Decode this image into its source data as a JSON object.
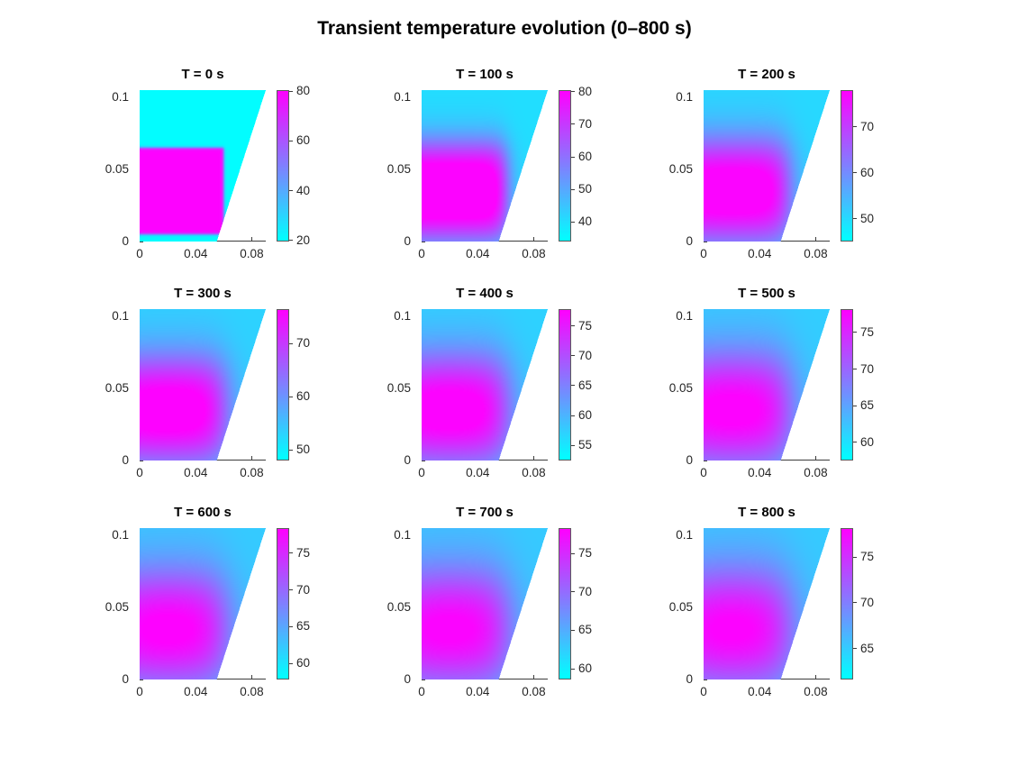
{
  "figure": {
    "title": "Transient temperature evolution (0–800 s)"
  },
  "colormap": {
    "name": "cool",
    "low": "#00ffff",
    "high": "#ff00ff"
  },
  "axes": {
    "x_range": [
      0,
      0.09
    ],
    "y_range": [
      0,
      0.105
    ],
    "x_ticks": {
      "values": [
        0,
        0.04,
        0.08
      ],
      "labels": [
        "0",
        "0.04",
        "0.08"
      ]
    },
    "y_ticks": {
      "values": [
        0,
        0.05,
        0.1
      ],
      "labels": [
        "0",
        "0.05",
        "0.1"
      ]
    }
  },
  "chart_data": {
    "type": "heatmap",
    "title": "Transient temperature evolution (0–800 s)",
    "xlabel": "",
    "ylabel": "",
    "domain_polygon": [
      [
        0,
        0
      ],
      [
        0.055,
        0
      ],
      [
        0.09,
        0.105
      ],
      [
        0,
        0.105
      ]
    ],
    "hot_rect": {
      "x0": -0.02,
      "x1": 0.06,
      "y0": 0.005,
      "y1": 0.065
    },
    "frames": [
      {
        "label": "T = 0 s",
        "time_s": 0,
        "caxis": [
          19.5,
          80.5
        ],
        "colorbar_ticks": [
          20,
          40,
          60,
          80
        ],
        "field": {
          "sx": 0.0012,
          "sy": 0.0012,
          "T_bg": 20.0,
          "T_core": 80.0,
          "gain": 1.0
        }
      },
      {
        "label": "T = 100 s",
        "time_s": 100,
        "caxis": [
          34.0,
          80.5
        ],
        "colorbar_ticks": [
          40,
          50,
          60,
          70,
          80
        ],
        "field": {
          "sx": 0.008,
          "sy": 0.016,
          "T_bg": 40.0,
          "T_core": 80.0,
          "gain": 1.25
        }
      },
      {
        "label": "T = 200 s",
        "time_s": 200,
        "caxis": [
          45.0,
          78.0
        ],
        "colorbar_ticks": [
          50,
          60,
          70
        ],
        "field": {
          "sx": 0.011,
          "sy": 0.02,
          "T_bg": 50.0,
          "T_core": 77.5,
          "gain": 1.25
        }
      },
      {
        "label": "T = 300 s",
        "time_s": 300,
        "caxis": [
          48.0,
          76.5
        ],
        "colorbar_ticks": [
          50,
          60,
          70
        ],
        "field": {
          "sx": 0.013,
          "sy": 0.022,
          "T_bg": 53.0,
          "T_core": 76.3,
          "gain": 1.28
        }
      },
      {
        "label": "T = 400 s",
        "time_s": 400,
        "caxis": [
          52.5,
          77.8
        ],
        "colorbar_ticks": [
          55,
          60,
          65,
          70,
          75
        ],
        "field": {
          "sx": 0.014,
          "sy": 0.024,
          "T_bg": 57.0,
          "T_core": 77.5,
          "gain": 1.3
        }
      },
      {
        "label": "T = 500 s",
        "time_s": 500,
        "caxis": [
          57.5,
          78.2
        ],
        "colorbar_ticks": [
          60,
          65,
          70,
          75
        ],
        "field": {
          "sx": 0.015,
          "sy": 0.026,
          "T_bg": 61.5,
          "T_core": 78.0,
          "gain": 1.3
        }
      },
      {
        "label": "T = 600 s",
        "time_s": 600,
        "caxis": [
          57.8,
          78.4
        ],
        "colorbar_ticks": [
          60,
          65,
          70,
          75
        ],
        "field": {
          "sx": 0.016,
          "sy": 0.027,
          "T_bg": 62.0,
          "T_core": 78.2,
          "gain": 1.32
        }
      },
      {
        "label": "T = 700 s",
        "time_s": 700,
        "caxis": [
          58.6,
          78.3
        ],
        "colorbar_ticks": [
          60,
          65,
          70,
          75
        ],
        "field": {
          "sx": 0.016,
          "sy": 0.028,
          "T_bg": 62.7,
          "T_core": 78.0,
          "gain": 1.33
        }
      },
      {
        "label": "T = 800 s",
        "time_s": 800,
        "caxis": [
          61.6,
          78.2
        ],
        "colorbar_ticks": [
          65,
          70,
          75
        ],
        "field": {
          "sx": 0.017,
          "sy": 0.029,
          "T_bg": 65.0,
          "T_core": 78.0,
          "gain": 1.35
        }
      }
    ]
  }
}
